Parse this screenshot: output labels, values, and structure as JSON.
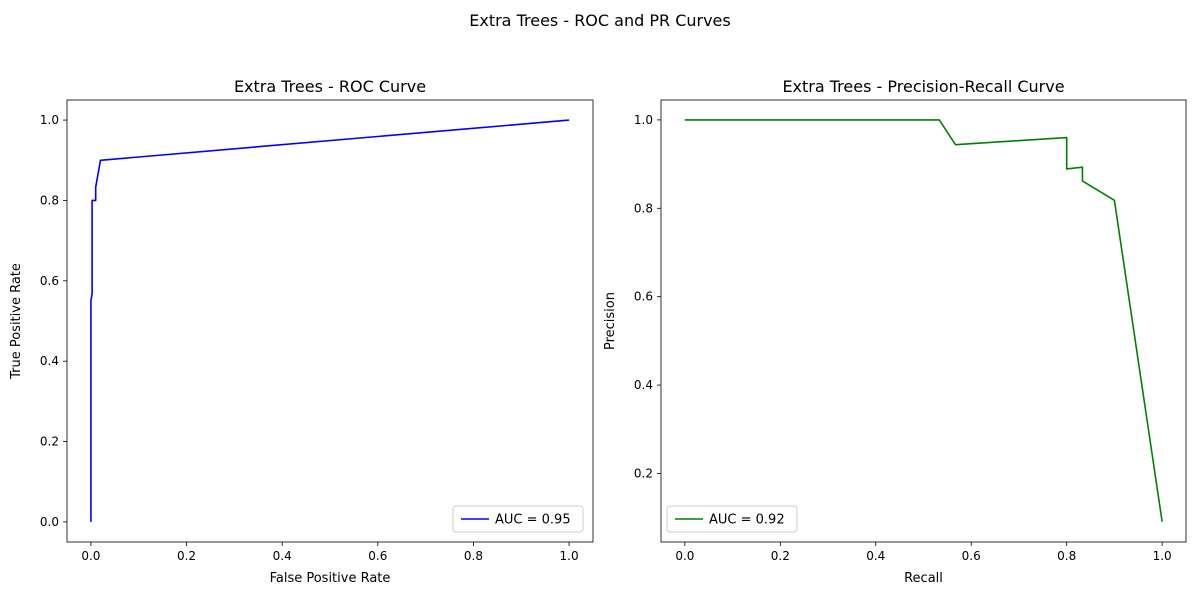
{
  "suptitle": "Extra Trees - ROC and PR Curves",
  "chart_data": [
    {
      "type": "line",
      "title": "Extra Trees - ROC Curve",
      "xlabel": "False Positive Rate",
      "ylabel": "True Positive Rate",
      "xlim": [
        -0.05,
        1.05
      ],
      "ylim": [
        -0.05,
        1.05
      ],
      "xticks": [
        0.0,
        0.2,
        0.4,
        0.6,
        0.8,
        1.0
      ],
      "yticks": [
        0.0,
        0.2,
        0.4,
        0.6,
        0.8,
        1.0
      ],
      "xtick_labels": [
        "0.0",
        "0.2",
        "0.4",
        "0.6",
        "0.8",
        "1.0"
      ],
      "ytick_labels": [
        "0.0",
        "0.2",
        "0.4",
        "0.6",
        "0.8",
        "1.0"
      ],
      "grid": false,
      "legend_position": "lower right",
      "series": [
        {
          "name": "AUC = 0.95",
          "color": "#0000ff",
          "x": [
            0.0,
            0.0,
            0.0,
            0.0,
            0.0025,
            0.0025,
            0.005,
            0.005,
            0.01,
            0.01,
            0.02,
            1.0
          ],
          "y": [
            0.0,
            0.533,
            0.533,
            0.55,
            0.567,
            0.8,
            0.8,
            0.8,
            0.8,
            0.833,
            0.9,
            1.0
          ]
        }
      ]
    },
    {
      "type": "line",
      "title": "Extra Trees - Precision-Recall Curve",
      "xlabel": "Recall",
      "ylabel": "Precision",
      "xlim": [
        -0.05,
        1.05
      ],
      "ylim": [
        0.045,
        1.045
      ],
      "xticks": [
        0.0,
        0.2,
        0.4,
        0.6,
        0.8,
        1.0
      ],
      "yticks": [
        0.2,
        0.4,
        0.6,
        0.8,
        1.0
      ],
      "xtick_labels": [
        "0.0",
        "0.2",
        "0.4",
        "0.6",
        "0.8",
        "1.0"
      ],
      "ytick_labels": [
        "0.2",
        "0.4",
        "0.6",
        "0.8",
        "1.0"
      ],
      "grid": false,
      "legend_position": "lower left",
      "series": [
        {
          "name": "AUC = 0.92",
          "color": "#008000",
          "x": [
            0.0,
            0.533,
            0.567,
            0.8,
            0.8,
            0.833,
            0.833,
            0.9,
            1.0
          ],
          "y": [
            1.0,
            1.0,
            0.944,
            0.96,
            0.889,
            0.893,
            0.862,
            0.818,
            0.091
          ]
        }
      ]
    }
  ]
}
